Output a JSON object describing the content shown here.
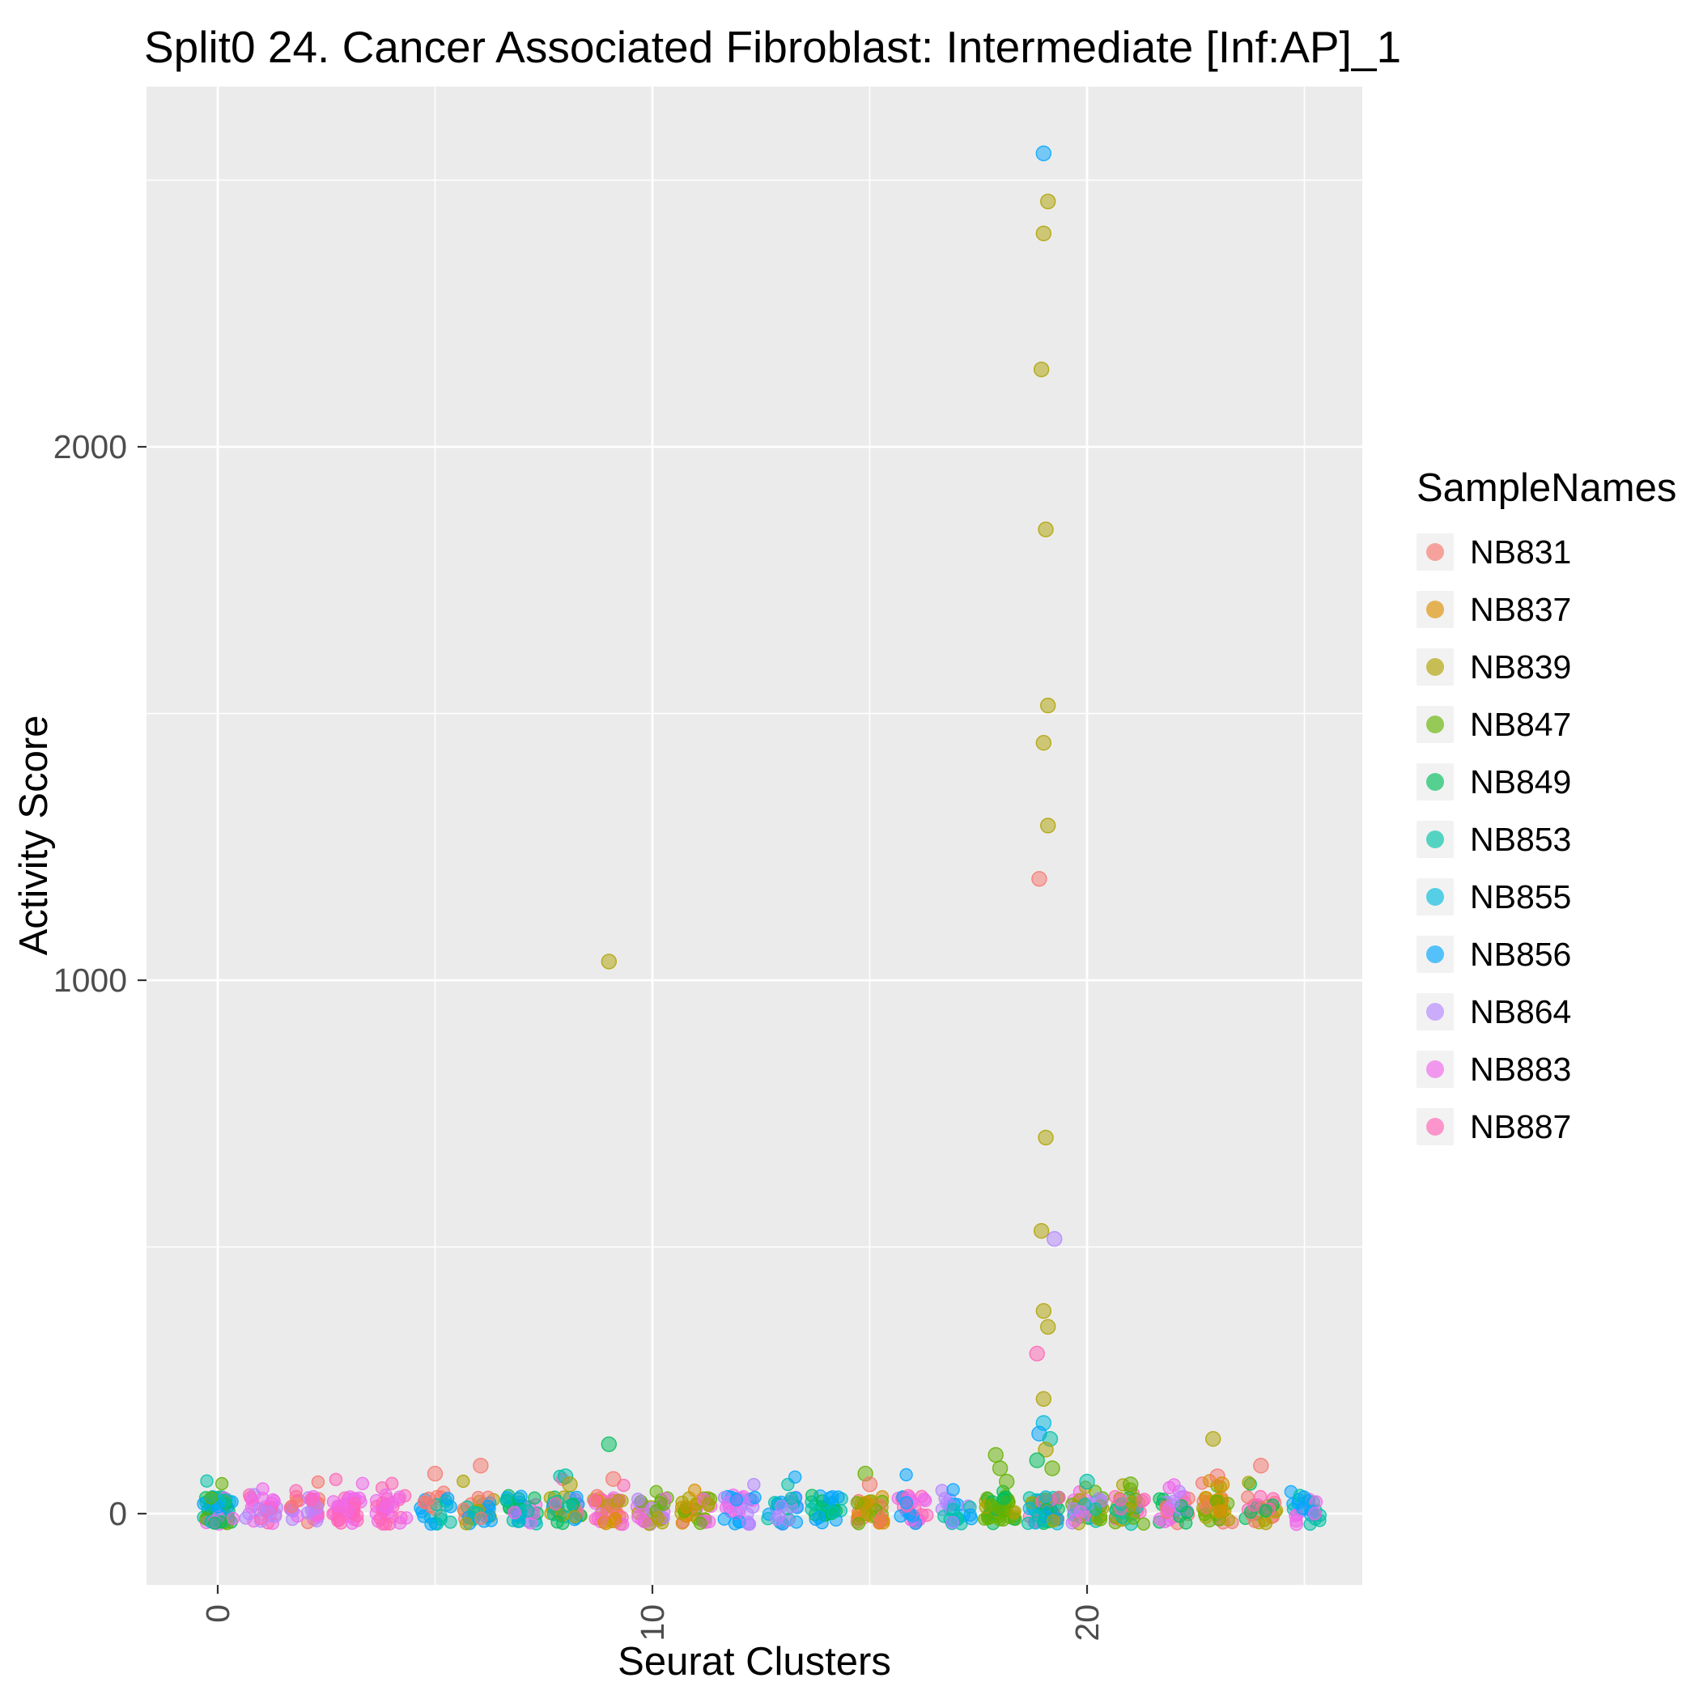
{
  "legend": {
    "title": "SampleNames"
  },
  "chart_data": {
    "type": "scatter",
    "title": "Split0 24. Cancer Associated Fibroblast: Intermediate [Inf:AP]_1",
    "xlabel": "Seurat Clusters",
    "ylabel": "Activity Score",
    "x_ticks": [
      0,
      10,
      20
    ],
    "y_ticks": [
      0,
      1000,
      2000
    ],
    "x_minor_ticks": [
      5,
      15,
      25
    ],
    "y_minor_ticks": [
      500,
      1500,
      2500
    ],
    "xlim": [
      -1.6,
      26.3
    ],
    "ylim": [
      -160,
      2675
    ],
    "panel_bg": "#EBEBEB",
    "grid_color": "#FFFFFF",
    "tick_label_color": "#4D4D4D",
    "samples": [
      {
        "name": "NB831",
        "color": "#F8766D"
      },
      {
        "name": "NB837",
        "color": "#DB8E00"
      },
      {
        "name": "NB839",
        "color": "#AEA200"
      },
      {
        "name": "NB847",
        "color": "#64B200"
      },
      {
        "name": "NB849",
        "color": "#00BD5C"
      },
      {
        "name": "NB853",
        "color": "#00C1A7"
      },
      {
        "name": "NB855",
        "color": "#00BADE"
      },
      {
        "name": "NB856",
        "color": "#00A6FF"
      },
      {
        "name": "NB864",
        "color": "#B385FF"
      },
      {
        "name": "NB883",
        "color": "#EF67EB"
      },
      {
        "name": "NB887",
        "color": "#FF63B6"
      }
    ],
    "outliers": [
      {
        "cluster": 19.0,
        "value": 2550,
        "sample": "NB856"
      },
      {
        "cluster": 19.1,
        "value": 2460,
        "sample": "NB839"
      },
      {
        "cluster": 19.0,
        "value": 2400,
        "sample": "NB839"
      },
      {
        "cluster": 18.95,
        "value": 2145,
        "sample": "NB839"
      },
      {
        "cluster": 19.05,
        "value": 1845,
        "sample": "NB839"
      },
      {
        "cluster": 19.1,
        "value": 1515,
        "sample": "NB839"
      },
      {
        "cluster": 19.0,
        "value": 1445,
        "sample": "NB839"
      },
      {
        "cluster": 19.1,
        "value": 1290,
        "sample": "NB839"
      },
      {
        "cluster": 18.9,
        "value": 1190,
        "sample": "NB831"
      },
      {
        "cluster": 9.0,
        "value": 1035,
        "sample": "NB839"
      },
      {
        "cluster": 19.05,
        "value": 705,
        "sample": "NB839"
      },
      {
        "cluster": 18.95,
        "value": 530,
        "sample": "NB839"
      },
      {
        "cluster": 19.25,
        "value": 515,
        "sample": "NB864"
      },
      {
        "cluster": 19.0,
        "value": 380,
        "sample": "NB839"
      },
      {
        "cluster": 19.1,
        "value": 350,
        "sample": "NB839"
      },
      {
        "cluster": 18.85,
        "value": 300,
        "sample": "NB887"
      },
      {
        "cluster": 19.0,
        "value": 215,
        "sample": "NB839"
      },
      {
        "cluster": 19.0,
        "value": 170,
        "sample": "NB855"
      },
      {
        "cluster": 18.9,
        "value": 150,
        "sample": "NB856"
      },
      {
        "cluster": 19.15,
        "value": 140,
        "sample": "NB853"
      },
      {
        "cluster": 19.05,
        "value": 120,
        "sample": "NB839"
      },
      {
        "cluster": 18.85,
        "value": 100,
        "sample": "NB849"
      },
      {
        "cluster": 19.2,
        "value": 85,
        "sample": "NB847"
      },
      {
        "cluster": 9.0,
        "value": 130,
        "sample": "NB849"
      },
      {
        "cluster": 9.1,
        "value": 65,
        "sample": "NB831"
      },
      {
        "cluster": 22.9,
        "value": 140,
        "sample": "NB839"
      },
      {
        "cluster": 24.0,
        "value": 90,
        "sample": "NB831"
      },
      {
        "cluster": 5.0,
        "value": 75,
        "sample": "NB831"
      },
      {
        "cluster": 6.05,
        "value": 90,
        "sample": "NB831"
      },
      {
        "cluster": 8.0,
        "value": 70,
        "sample": "NB853"
      },
      {
        "cluster": 8.1,
        "value": 55,
        "sample": "NB839"
      },
      {
        "cluster": 14.9,
        "value": 75,
        "sample": "NB847"
      },
      {
        "cluster": 15.0,
        "value": 55,
        "sample": "NB831"
      },
      {
        "cluster": 17.9,
        "value": 110,
        "sample": "NB847"
      },
      {
        "cluster": 18.0,
        "value": 85,
        "sample": "NB847"
      },
      {
        "cluster": 18.15,
        "value": 60,
        "sample": "NB847"
      },
      {
        "cluster": 20.0,
        "value": 60,
        "sample": "NB853"
      },
      {
        "cluster": 21.0,
        "value": 55,
        "sample": "NB847"
      },
      {
        "cluster": 23.0,
        "value": 70,
        "sample": "NB831"
      },
      {
        "cluster": 23.1,
        "value": 55,
        "sample": "NB837"
      }
    ],
    "baseline_clusters": [
      {
        "cluster": 0,
        "count": 55,
        "samples": [
          "NB849",
          "NB853",
          "NB855",
          "NB856",
          "NB883",
          "NB847"
        ]
      },
      {
        "cluster": 1,
        "count": 30,
        "samples": [
          "NB883",
          "NB887",
          "NB864"
        ]
      },
      {
        "cluster": 2,
        "count": 36,
        "samples": [
          "NB831",
          "NB883",
          "NB887",
          "NB864"
        ]
      },
      {
        "cluster": 3,
        "count": 34,
        "samples": [
          "NB887",
          "NB883"
        ]
      },
      {
        "cluster": 4,
        "count": 30,
        "samples": [
          "NB883",
          "NB887"
        ]
      },
      {
        "cluster": 5,
        "count": 24,
        "samples": [
          "NB856",
          "NB831",
          "NB853"
        ]
      },
      {
        "cluster": 6,
        "count": 30,
        "samples": [
          "NB856",
          "NB831",
          "NB839",
          "NB853"
        ]
      },
      {
        "cluster": 7,
        "count": 34,
        "samples": [
          "NB856",
          "NB853",
          "NB883",
          "NB849"
        ]
      },
      {
        "cluster": 8,
        "count": 38,
        "samples": [
          "NB853",
          "NB839",
          "NB887",
          "NB856",
          "NB849"
        ]
      },
      {
        "cluster": 9,
        "count": 40,
        "samples": [
          "NB831",
          "NB839",
          "NB887",
          "NB883",
          "NB837"
        ]
      },
      {
        "cluster": 10,
        "count": 34,
        "samples": [
          "NB864",
          "NB839",
          "NB883",
          "NB847"
        ]
      },
      {
        "cluster": 11,
        "count": 34,
        "samples": [
          "NB839",
          "NB847",
          "NB883",
          "NB837"
        ]
      },
      {
        "cluster": 12,
        "count": 30,
        "samples": [
          "NB864",
          "NB883",
          "NB856"
        ]
      },
      {
        "cluster": 13,
        "count": 30,
        "samples": [
          "NB856",
          "NB853",
          "NB864"
        ]
      },
      {
        "cluster": 14,
        "count": 30,
        "samples": [
          "NB853",
          "NB849",
          "NB856"
        ]
      },
      {
        "cluster": 15,
        "count": 34,
        "samples": [
          "NB847",
          "NB839",
          "NB831",
          "NB837"
        ]
      },
      {
        "cluster": 16,
        "count": 30,
        "samples": [
          "NB887",
          "NB883",
          "NB856"
        ]
      },
      {
        "cluster": 17,
        "count": 24,
        "samples": [
          "NB856",
          "NB864",
          "NB853"
        ]
      },
      {
        "cluster": 18,
        "count": 46,
        "samples": [
          "NB847",
          "NB847",
          "NB839",
          "NB849"
        ]
      },
      {
        "cluster": 19,
        "count": 50,
        "samples": [
          "NB839",
          "NB853",
          "NB855",
          "NB849",
          "NB887",
          "NB856"
        ]
      },
      {
        "cluster": 20,
        "count": 40,
        "samples": [
          "NB847",
          "NB853",
          "NB864",
          "NB883",
          "NB839"
        ]
      },
      {
        "cluster": 21,
        "count": 36,
        "samples": [
          "NB847",
          "NB853",
          "NB839",
          "NB887"
        ]
      },
      {
        "cluster": 22,
        "count": 34,
        "samples": [
          "NB864",
          "NB883",
          "NB831",
          "NB849"
        ]
      },
      {
        "cluster": 23,
        "count": 34,
        "samples": [
          "NB839",
          "NB837",
          "NB831",
          "NB847"
        ]
      },
      {
        "cluster": 24,
        "count": 30,
        "samples": [
          "NB831",
          "NB849",
          "NB887",
          "NB839"
        ]
      },
      {
        "cluster": 25,
        "count": 28,
        "samples": [
          "NB856",
          "NB853",
          "NB883"
        ]
      }
    ]
  }
}
